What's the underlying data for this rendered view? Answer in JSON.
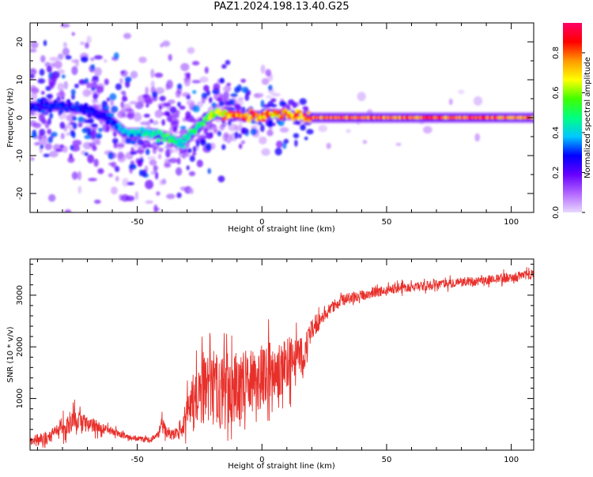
{
  "title": "PAZ1.2024.198.13.40.G25",
  "chart_data": [
    {
      "type": "heatmap",
      "xlabel": "Height of straight line (km)",
      "ylabel": "Frequency (Hz)",
      "xlim": [
        -93,
        109
      ],
      "ylim": [
        -25,
        25
      ],
      "xticks": [
        -50,
        0,
        50,
        100
      ],
      "yticks": [
        -20,
        -10,
        0,
        10,
        20
      ],
      "colorbar": {
        "label": "Normalized spectral amplitude",
        "range": [
          0,
          0.95
        ],
        "ticks": [
          0.0,
          0.2,
          0.4,
          0.6,
          0.8
        ],
        "colormap": [
          "#e8d8ff",
          "#b266ff",
          "#6600ff",
          "#0000ff",
          "#00c8ff",
          "#00ff80",
          "#40ff00",
          "#ffff00",
          "#ff9900",
          "#ff0000",
          "#ff0066"
        ]
      },
      "ridge": {
        "x": [
          -93,
          -80,
          -70,
          -62,
          -55,
          -45,
          -38,
          -33,
          -28,
          -22,
          -18,
          -12,
          -5,
          0,
          5,
          15,
          20,
          50,
          100,
          109
        ],
        "y": [
          3,
          3,
          2,
          0,
          -4,
          -4,
          -5,
          -7,
          -4,
          0,
          1,
          0.5,
          0.5,
          0.5,
          1,
          0.5,
          0,
          0,
          0,
          0
        ],
        "amplitude": [
          0.3,
          0.3,
          0.3,
          0.3,
          0.4,
          0.45,
          0.55,
          0.5,
          0.5,
          0.6,
          0.7,
          0.85,
          0.9,
          0.85,
          0.8,
          0.85,
          0.9,
          0.9,
          0.9,
          0.9
        ]
      }
    },
    {
      "type": "line",
      "xlabel": "Height of straight line (km)",
      "ylabel": "SNR (10 * v/v)",
      "xlim": [
        -93,
        109
      ],
      "ylim": [
        0,
        3700
      ],
      "xticks": [
        -50,
        0,
        50,
        100
      ],
      "yticks": [
        1000,
        2000,
        3000
      ],
      "color": "#e8302b",
      "envelope": {
        "x": [
          -93,
          -85,
          -80,
          -75,
          -70,
          -65,
          -60,
          -55,
          -50,
          -45,
          -42,
          -40,
          -38,
          -35,
          -32,
          -30,
          -27,
          -25,
          -22,
          -20,
          -18,
          -15,
          -12,
          -10,
          -8,
          -5,
          -2,
          0,
          3,
          5,
          8,
          10,
          13,
          15,
          18,
          20,
          25,
          30,
          35,
          40,
          45,
          50,
          55,
          60,
          70,
          80,
          90,
          100,
          109
        ],
        "mean": [
          180,
          250,
          450,
          600,
          500,
          420,
          350,
          280,
          220,
          200,
          260,
          500,
          350,
          300,
          350,
          700,
          950,
          1050,
          1100,
          1200,
          1150,
          1100,
          1250,
          1200,
          1250,
          1350,
          1300,
          1450,
          1500,
          1600,
          1550,
          1650,
          1750,
          1800,
          2000,
          2350,
          2600,
          2850,
          2950,
          3000,
          3050,
          3100,
          3150,
          3150,
          3200,
          3250,
          3300,
          3350,
          3400
        ],
        "spread": [
          150,
          250,
          350,
          400,
          300,
          200,
          150,
          120,
          100,
          100,
          150,
          300,
          200,
          200,
          300,
          700,
          1100,
          1300,
          1300,
          1400,
          1300,
          1300,
          1300,
          1200,
          1200,
          1100,
          1100,
          1100,
          1100,
          1050,
          1000,
          950,
          900,
          850,
          600,
          400,
          250,
          200,
          200,
          180,
          180,
          180,
          170,
          170,
          170,
          170,
          170,
          170,
          170
        ]
      }
    }
  ]
}
